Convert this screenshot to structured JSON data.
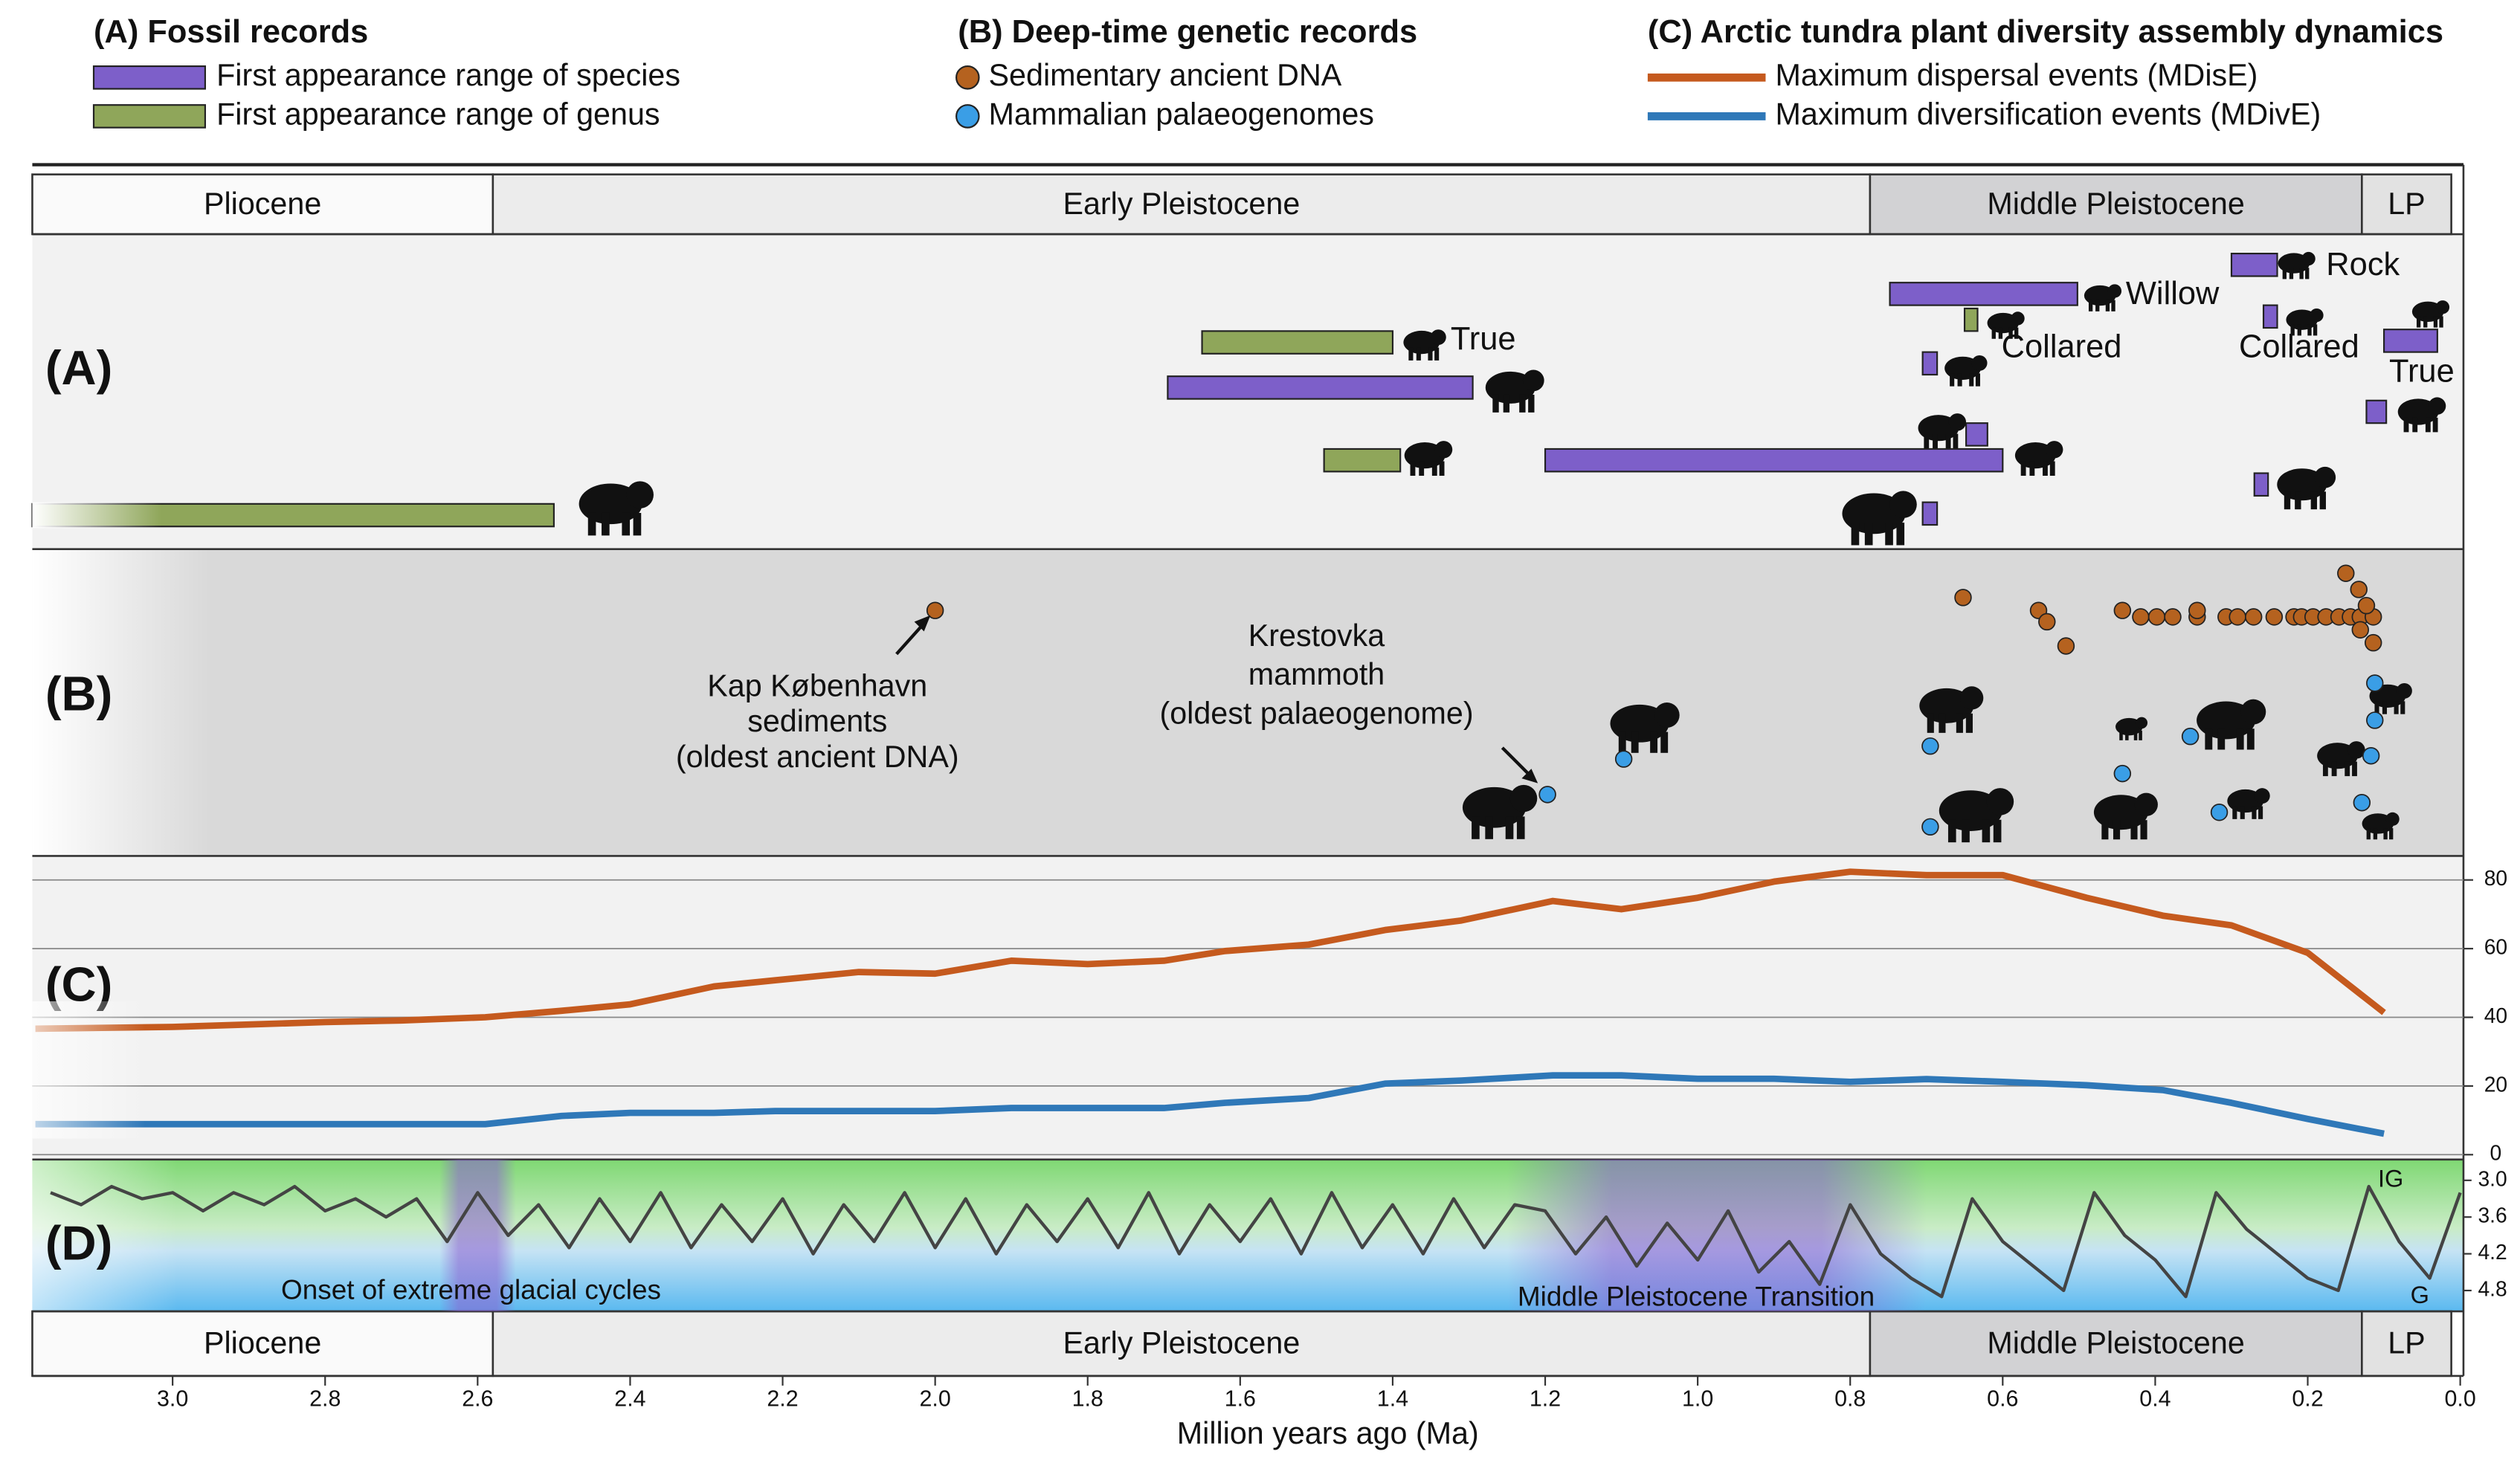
{
  "legend": [
    {
      "title": "(A) Fossil records",
      "items": [
        {
          "label": "First appearance range of species",
          "color": "#7d5fc9"
        },
        {
          "label": "First appearance range of genus",
          "color": "#8fa65a"
        }
      ]
    },
    {
      "title": "(B) Deep-time genetic records",
      "items": [
        {
          "label": "Sedimentary ancient DNA",
          "color": "#b5621f"
        },
        {
          "label": "Mammalian palaeogenomes",
          "color": "#3a9ee6"
        }
      ]
    },
    {
      "title": "(C) Arctic tundra plant diversity assembly dynamics",
      "items": [
        {
          "label": "Maximum dispersal events (MDisE)",
          "color": "#c55a1e"
        },
        {
          "label": "Maximum diversification events (MDivE)",
          "color": "#2f78b8"
        }
      ]
    }
  ],
  "epochs": [
    {
      "name": "Pliocene",
      "start": 3.184,
      "end": 2.58,
      "color": "#fafafa"
    },
    {
      "name": "Early Pleistocene",
      "start": 2.58,
      "end": 0.774,
      "color": "#ececec"
    },
    {
      "name": "Middle Pleistocene",
      "start": 0.774,
      "end": 0.129,
      "color": "#d2d2d4"
    },
    {
      "name": "LP",
      "start": 0.129,
      "end": 0.0117,
      "color": "#e2e2e2"
    }
  ],
  "xaxis": {
    "title": "Million years ago (Ma)",
    "xlim": [
      3.184,
      0
    ],
    "xticks": [
      {
        "value": 3,
        "label": "3.0"
      },
      {
        "value": 2.8,
        "label": "2.8"
      },
      {
        "value": 2.6,
        "label": "2.6"
      },
      {
        "value": 2.4,
        "label": "2.4"
      },
      {
        "value": 2.2,
        "label": "2.2"
      },
      {
        "value": 2,
        "label": "2.0"
      },
      {
        "value": 1.8,
        "label": "1.8"
      },
      {
        "value": 1.6,
        "label": "1.6"
      },
      {
        "value": 1.4,
        "label": "1.4"
      },
      {
        "value": 1.2,
        "label": "1.2"
      },
      {
        "value": 1,
        "label": "1.0"
      },
      {
        "value": 0.8,
        "label": "0.8"
      },
      {
        "value": 0.6,
        "label": "0.6"
      },
      {
        "value": 0.4,
        "label": "0.4"
      },
      {
        "value": 0.2,
        "label": "0.2"
      },
      {
        "value": 0,
        "label": "0.0"
      }
    ]
  },
  "panel_labels": [
    "(A)",
    "(B)",
    "(C)",
    "(D)"
  ],
  "fossils": {
    "bars": [
      {
        "start": 3.184,
        "end": 2.5,
        "kind": "genus"
      },
      {
        "start": 1.65,
        "end": 1.4,
        "kind": "genus"
      },
      {
        "start": 1.695,
        "end": 1.295,
        "kind": "species"
      },
      {
        "start": 1.49,
        "end": 1.39,
        "kind": "genus"
      },
      {
        "start": 1.2,
        "end": 0.6,
        "kind": "species"
      },
      {
        "start": 0.748,
        "end": 0.502,
        "kind": "species"
      },
      {
        "start": 0.65,
        "end": 0.633,
        "kind": "genus"
      },
      {
        "start": 0.705,
        "end": 0.686,
        "kind": "species"
      },
      {
        "start": 0.648,
        "end": 0.62,
        "kind": "species"
      },
      {
        "start": 0.705,
        "end": 0.686,
        "kind": "species"
      },
      {
        "start": 0.3,
        "end": 0.24,
        "kind": "species"
      },
      {
        "start": 0.258,
        "end": 0.24,
        "kind": "species"
      },
      {
        "start": 0.1,
        "end": 0.03,
        "kind": "species"
      },
      {
        "start": 0.123,
        "end": 0.097,
        "kind": "species"
      },
      {
        "start": 0.27,
        "end": 0.252,
        "kind": "species"
      }
    ],
    "labels": [
      "True",
      "Willow",
      "Collared",
      "Rock",
      "Collared",
      "True"
    ]
  },
  "genetic": {
    "sedaDNA": [
      2.0,
      0.652,
      0.553,
      0.542,
      0.517,
      0.443,
      0.419,
      0.398,
      0.377,
      0.345,
      0.345,
      0.307,
      0.292,
      0.271,
      0.244,
      0.218,
      0.208,
      0.193,
      0.176,
      0.159,
      0.144,
      0.131,
      0.114,
      0.15,
      0.133,
      0.123,
      0.131,
      0.114
    ],
    "palaeogenomes": [
      1.197,
      1.097,
      0.695,
      0.695,
      0.443,
      0.354,
      0.316,
      0.112,
      0.117,
      0.129,
      0.112
    ],
    "annotations": [
      [
        "Kap København",
        "sediments",
        "(oldest ancient DNA)"
      ],
      [
        "Krestovka",
        "mammoth",
        "(oldest palaeogenome)"
      ]
    ]
  },
  "diversity": {
    "x": [
      3.18,
      3.0,
      2.8,
      2.7,
      2.59,
      2.49,
      2.4,
      2.29,
      2.21,
      2.1,
      2.0,
      1.9,
      1.8,
      1.7,
      1.62,
      1.51,
      1.41,
      1.31,
      1.19,
      1.1,
      1.0,
      0.9,
      0.8,
      0.7,
      0.6,
      0.49,
      0.39,
      0.3,
      0.2,
      0.1
    ],
    "series": [
      {
        "name": "MDisE",
        "color": "#c55a1e",
        "values": [
          36.7,
          37.2,
          38.6,
          39.1,
          40.0,
          41.9,
          43.8,
          49.0,
          50.8,
          53.2,
          52.7,
          56.5,
          55.5,
          56.5,
          59.3,
          61.2,
          65.4,
          68.2,
          73.9,
          71.5,
          74.8,
          79.5,
          82.4,
          81.4,
          81.4,
          74.8,
          69.6,
          66.8,
          58.8,
          41.4
        ]
      },
      {
        "name": "MDivE",
        "color": "#2f78b8",
        "values": [
          8.9,
          8.9,
          8.9,
          8.9,
          8.9,
          11.3,
          12.2,
          12.2,
          12.7,
          12.7,
          12.7,
          13.6,
          13.6,
          13.6,
          15.1,
          16.5,
          20.7,
          21.6,
          23.1,
          23.1,
          22.1,
          22.1,
          21.2,
          22.0,
          21.2,
          20.2,
          18.8,
          15.1,
          10.4,
          6.1
        ]
      }
    ],
    "ylim": [
      0,
      87
    ],
    "yticks": [
      0,
      20,
      40,
      60,
      80
    ],
    "grid": true
  },
  "climate": {
    "x": [
      3.16,
      3.12,
      3.08,
      3.04,
      3.0,
      2.96,
      2.92,
      2.88,
      2.84,
      2.8,
      2.76,
      2.72,
      2.68,
      2.64,
      2.6,
      2.56,
      2.52,
      2.48,
      2.44,
      2.4,
      2.36,
      2.32,
      2.28,
      2.24,
      2.2,
      2.16,
      2.12,
      2.08,
      2.04,
      2.0,
      1.96,
      1.92,
      1.88,
      1.84,
      1.8,
      1.76,
      1.72,
      1.68,
      1.64,
      1.6,
      1.56,
      1.52,
      1.48,
      1.44,
      1.4,
      1.36,
      1.32,
      1.28,
      1.24,
      1.2,
      1.16,
      1.12,
      1.08,
      1.04,
      1.0,
      0.96,
      0.92,
      0.88,
      0.84,
      0.8,
      0.76,
      0.72,
      0.68,
      0.64,
      0.6,
      0.56,
      0.52,
      0.48,
      0.44,
      0.4,
      0.36,
      0.32,
      0.28,
      0.24,
      0.2,
      0.16,
      0.12,
      0.08,
      0.04,
      0.0
    ],
    "values": [
      3.2,
      3.4,
      3.1,
      3.3,
      3.2,
      3.5,
      3.2,
      3.4,
      3.1,
      3.5,
      3.3,
      3.6,
      3.3,
      4.0,
      3.2,
      3.9,
      3.4,
      4.1,
      3.3,
      4.0,
      3.2,
      4.1,
      3.4,
      4.0,
      3.3,
      4.2,
      3.4,
      4.0,
      3.2,
      4.1,
      3.3,
      4.2,
      3.4,
      4.0,
      3.3,
      4.1,
      3.2,
      4.2,
      3.4,
      4.0,
      3.3,
      4.2,
      3.2,
      4.1,
      3.4,
      4.2,
      3.3,
      4.1,
      3.4,
      3.5,
      4.2,
      3.6,
      4.4,
      3.7,
      4.3,
      3.5,
      4.5,
      4.0,
      4.7,
      3.4,
      4.2,
      4.6,
      4.9,
      3.3,
      4.0,
      4.4,
      4.8,
      3.2,
      3.9,
      4.3,
      4.9,
      3.2,
      3.8,
      4.2,
      4.6,
      4.8,
      3.1,
      4.0,
      4.6,
      3.2
    ],
    "color": "#444444",
    "ylim": [
      2.66,
      5.14
    ],
    "yticks": [
      {
        "value": 3,
        "label": "3.0"
      },
      {
        "value": 3.6,
        "label": "3.6"
      },
      {
        "value": 4.2,
        "label": "4.2"
      },
      {
        "value": 4.8,
        "label": "4.8"
      }
    ],
    "bands": [
      {
        "label": "Onset of extreme glacial cycles",
        "start": 2.65,
        "end": 2.55
      },
      {
        "label": "Middle Pleistocene Transition",
        "start": 1.25,
        "end": 0.7
      }
    ],
    "ends": [
      "IG",
      "G"
    ]
  }
}
